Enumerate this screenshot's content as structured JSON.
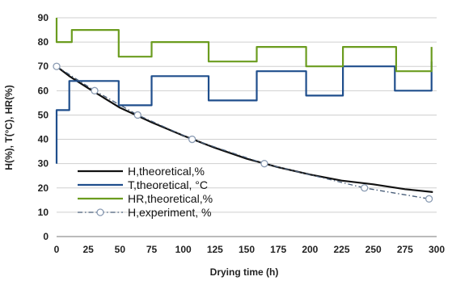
{
  "chart_data": {
    "type": "line",
    "title": "",
    "xlabel": "Drying time (h)",
    "ylabel": "H(%), T(°C), HR(%)",
    "xlim": [
      0,
      300
    ],
    "ylim": [
      0,
      90
    ],
    "x_ticks": [
      0,
      25,
      50,
      75,
      100,
      125,
      150,
      175,
      200,
      225,
      250,
      275,
      300
    ],
    "y_ticks": [
      0,
      10,
      20,
      30,
      40,
      50,
      60,
      70,
      80,
      90
    ],
    "grid": "horizontal",
    "legend_position": "lower-left",
    "series": [
      {
        "name": "H,theoretical,%",
        "color": "#111111",
        "style": "solid",
        "x": [
          0,
          10,
          25,
          50,
          75,
          100,
          125,
          150,
          175,
          200,
          225,
          250,
          275,
          297
        ],
        "y": [
          70,
          66,
          61,
          53,
          47,
          41.5,
          36.5,
          32,
          28.5,
          25.5,
          23,
          21.5,
          19.5,
          18.3
        ]
      },
      {
        "name": "T,theoretical, °C",
        "color": "#1f4e8c",
        "style": "solid",
        "x": [
          0,
          0,
          10,
          10,
          49,
          49,
          75,
          75,
          120,
          120,
          158,
          158,
          197,
          197,
          226,
          226,
          267,
          267,
          296,
          296
        ],
        "y": [
          30,
          52,
          52,
          64,
          64,
          54,
          54,
          66,
          66,
          56,
          56,
          68,
          68,
          58,
          58,
          70,
          70,
          60,
          60,
          72
        ]
      },
      {
        "name": "HR,theoretical,%",
        "color": "#6b9c1f",
        "style": "solid",
        "x": [
          0,
          0,
          12,
          12,
          49,
          49,
          75,
          75,
          120,
          120,
          158,
          158,
          197,
          197,
          226,
          226,
          268,
          268,
          296,
          296
        ],
        "y": [
          90,
          80,
          80,
          85,
          85,
          74,
          74,
          80,
          80,
          72,
          72,
          78,
          78,
          70,
          70,
          78,
          78,
          68,
          68,
          78
        ]
      },
      {
        "name": "H,experiment, %",
        "color": "#4a5f7a",
        "style": "dash-dot",
        "marker": "circle",
        "x": [
          0,
          30,
          64,
          107,
          164,
          243,
          294
        ],
        "y": [
          70,
          60,
          50,
          40,
          30,
          20,
          15.5
        ]
      }
    ]
  }
}
